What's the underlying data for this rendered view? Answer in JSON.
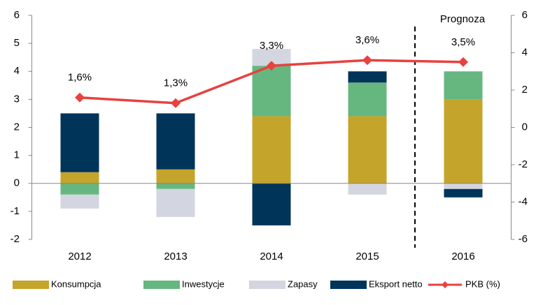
{
  "chart_data": {
    "type": "bar",
    "categories": [
      "2012",
      "2013",
      "2014",
      "2015",
      "2016"
    ],
    "series": [
      {
        "name": "Konsumpcja",
        "color": "#c5a42b",
        "values": [
          0.4,
          0.5,
          2.4,
          2.4,
          3.0
        ]
      },
      {
        "name": "Inwestycje",
        "color": "#66b77f",
        "values": [
          -0.4,
          -0.2,
          1.8,
          1.2,
          1.0
        ]
      },
      {
        "name": "Zapasy",
        "color": "#d3d6e0",
        "values": [
          -0.5,
          -1.0,
          0.6,
          -0.4,
          -0.2
        ]
      },
      {
        "name": "Eksport netto",
        "color": "#003459",
        "values": [
          2.1,
          2.0,
          -1.5,
          0.4,
          -0.3
        ]
      },
      {
        "name": "PKB (%)",
        "color": "#e8413f",
        "type": "line",
        "axis": "y2",
        "values": [
          1.6,
          1.3,
          3.3,
          3.6,
          3.5
        ],
        "value_labels": [
          "1,6%",
          "1,3%",
          "3,3%",
          "3,6%",
          "3,5%"
        ]
      }
    ],
    "ylim": [
      -2,
      6
    ],
    "yticks": [
      -2,
      -1,
      0,
      1,
      2,
      3,
      4,
      5,
      6
    ],
    "y2lim": [
      -6,
      6
    ],
    "y2ticks": [
      -6,
      -4,
      -2,
      0,
      2,
      4,
      6
    ],
    "annotation": "Prognoza",
    "legend": "bottom"
  }
}
